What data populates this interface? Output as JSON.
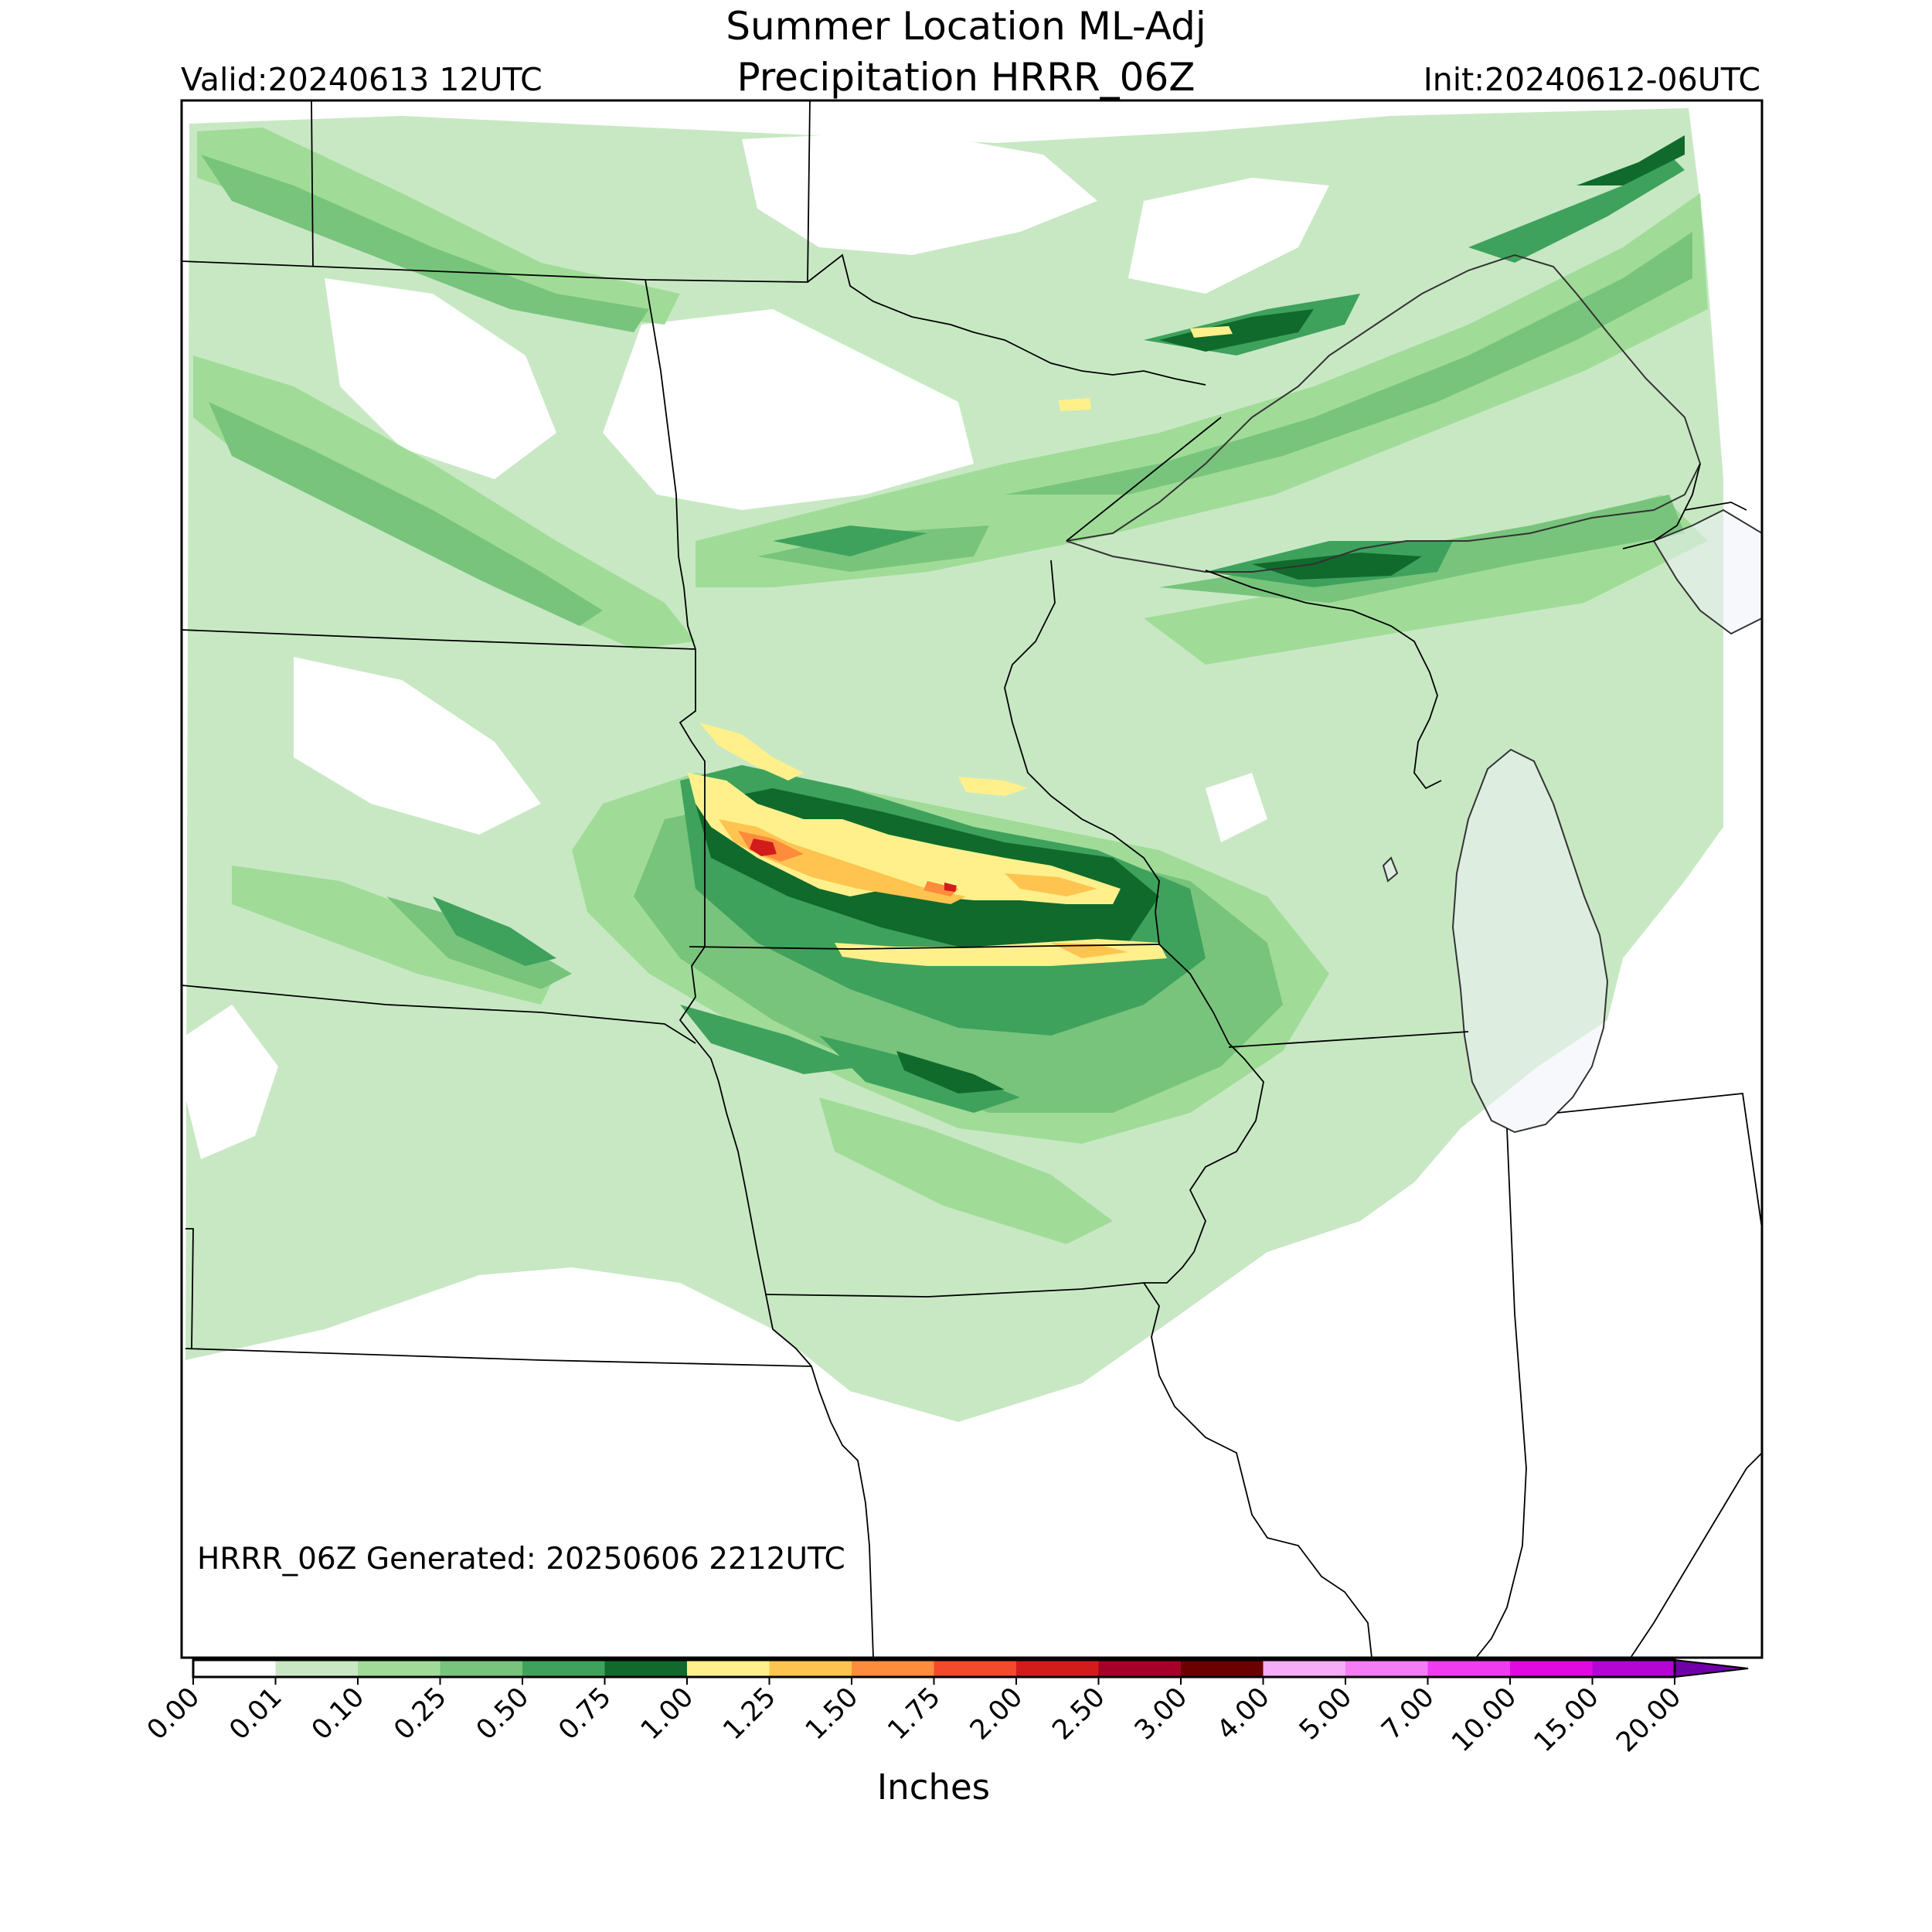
{
  "header": {
    "title_line1": "Summer Location ML-Adj",
    "title_line2": "Precipitation HRRR_06Z",
    "valid": "Valid:20240613 12UTC",
    "init": "Init:20240612-06UTC"
  },
  "map": {
    "generated_note": "HRRR_06Z Generated: 20250606 2212UTC",
    "lake_color": "#eef3f9",
    "border_color": "#000000"
  },
  "colorbar": {
    "label": "Inches",
    "ticks": [
      "0.00",
      "0.01",
      "0.10",
      "0.25",
      "0.50",
      "0.75",
      "1.00",
      "1.25",
      "1.50",
      "1.75",
      "2.00",
      "2.50",
      "3.00",
      "4.00",
      "5.00",
      "7.00",
      "10.00",
      "15.00",
      "20.00"
    ],
    "colors": [
      "#ffffff",
      "#c8e8c4",
      "#a0dc98",
      "#78c47c",
      "#3ea25c",
      "#106a2c",
      "#fff08c",
      "#ffc450",
      "#fd8c3c",
      "#f24a2a",
      "#d21c1c",
      "#a6002a",
      "#6a0000",
      "#f6acf6",
      "#f47cf4",
      "#f03cf0",
      "#e00ae0",
      "#b406d2",
      "#8c00c8"
    ],
    "extend_color": "#7000a8"
  }
}
